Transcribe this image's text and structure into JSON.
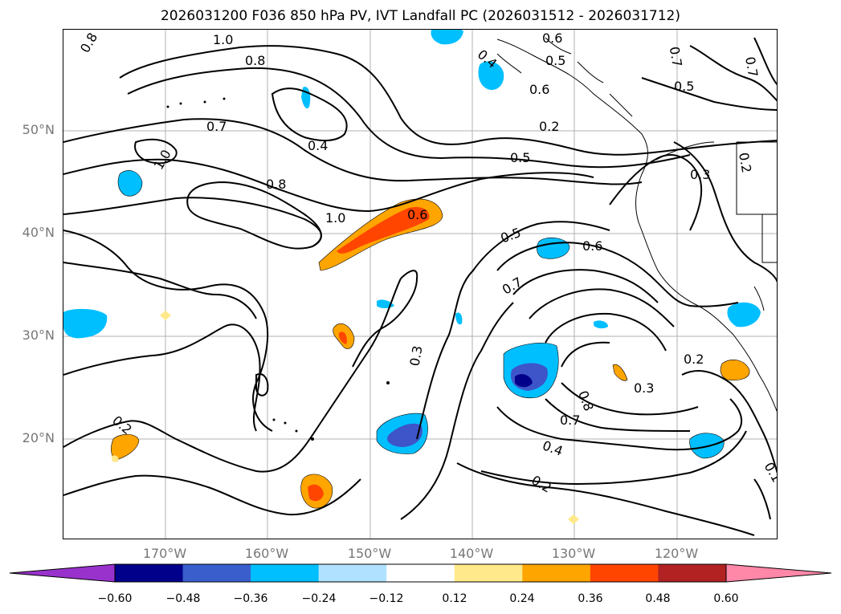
{
  "title": "2026031200 F036 850 hPa PV, IVT Landfall PC (2026031512 - 2026031712)",
  "map": {
    "lat_labels": [
      "50°N",
      "40°N",
      "30°N",
      "20°N"
    ],
    "lon_labels": [
      "170°W",
      "160°W",
      "150°W",
      "140°W",
      "130°W",
      "120°W"
    ],
    "contour_labels": [
      "0.8",
      "1.0",
      "0.8",
      "0.4",
      "0.6",
      "0.5",
      "0.6",
      "0.5",
      "0.7",
      "1.0",
      "0.7",
      "0.4",
      "0.8",
      "1.0",
      "0.6",
      "0.5",
      "0.5",
      "0.6",
      "0.7",
      "0.3",
      "0.2",
      "0.3",
      "0.8",
      "0.7",
      "0.4",
      "0.2",
      "0.2",
      "0.3",
      "0.2",
      "0.2",
      "0.1",
      "0.7"
    ],
    "shading_colors": {
      "neg_060": "#8b3fd1",
      "neg_048": "#00008b",
      "neg_036": "#3d55c8",
      "neg_024": "#00bfff",
      "neg_012": "#aee3f9",
      "pos_012": "#ffe98a",
      "pos_024": "#ffa500",
      "pos_036": "#ff4500",
      "pos_048": "#b22222",
      "pos_060": "#ff87a8"
    }
  },
  "colorbar": {
    "ticks": [
      "−0.60",
      "−0.48",
      "−0.36",
      "−0.24",
      "−0.12",
      "0.12",
      "0.24",
      "0.36",
      "0.48",
      "0.60"
    ],
    "colors": [
      "#9932cc",
      "#00008b",
      "#3a5fcd",
      "#00bfff",
      "#b0e2ff",
      "#ffffff",
      "#ffe98a",
      "#ffa500",
      "#ff4500",
      "#b22222",
      "#ff87a8",
      "#ff87a8"
    ]
  }
}
